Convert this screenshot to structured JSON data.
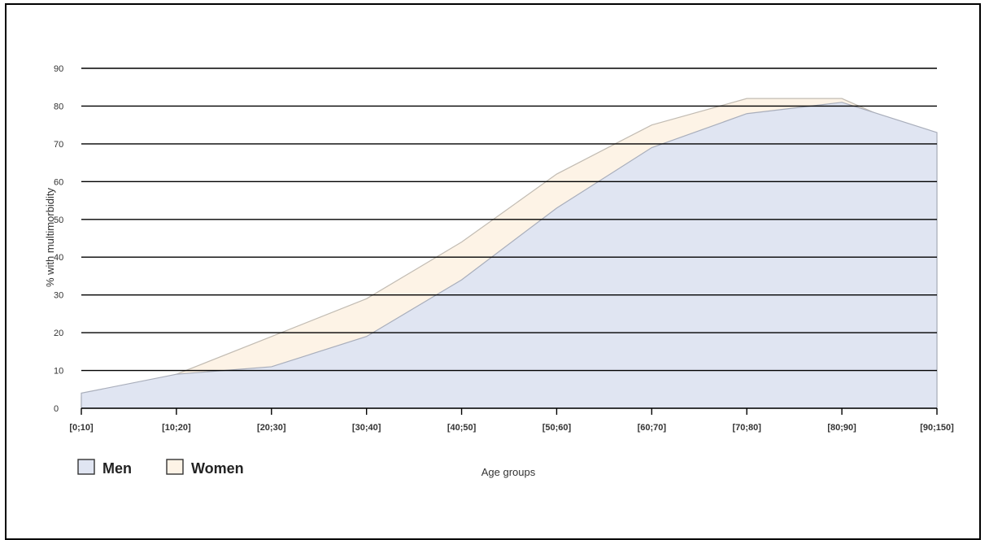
{
  "chart_data": {
    "type": "area",
    "categories": [
      "[0;10]",
      "[10;20]",
      "[20;30]",
      "[30;40]",
      "[40;50]",
      "[50;60]",
      "[60;70]",
      "[70;80]",
      "[80;90]",
      "[90;150]"
    ],
    "series": [
      {
        "name": "Men",
        "values": [
          4,
          9,
          11,
          19,
          34,
          53,
          69,
          78,
          81,
          73
        ],
        "color": "#e0e5f2",
        "stroke": "#a9aebb"
      },
      {
        "name": "Women",
        "values": [
          3,
          9,
          19,
          29,
          44,
          62,
          75,
          82,
          82,
          71
        ],
        "color": "#fdf3e6",
        "stroke": "#c2bcb3"
      }
    ],
    "title": "",
    "xlabel": "Age groups",
    "ylabel": "% with multimorbidity",
    "ylim": [
      0,
      90
    ],
    "yticks": [
      0,
      10,
      20,
      30,
      40,
      50,
      60,
      70,
      80,
      90
    ],
    "grid": true,
    "legend": "bottom-left"
  }
}
